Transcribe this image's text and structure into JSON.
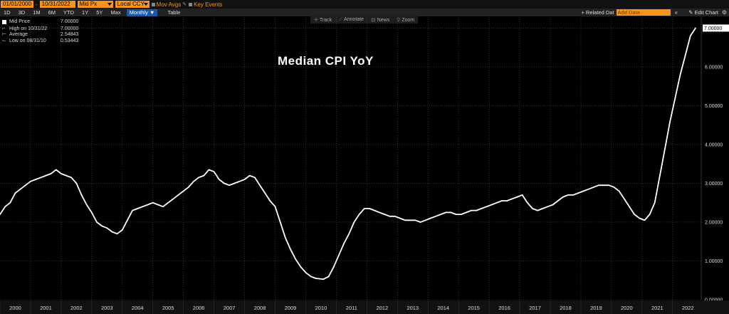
{
  "toolbar": {
    "date_start": "01/01/2000",
    "date_end": "10/31/2022",
    "price_field": "Mid Px",
    "currency_field": "Local CCY",
    "mov_avgs": "Mov Avgs",
    "key_events": "Key Events",
    "periods": [
      "1D",
      "3D",
      "1M",
      "6M",
      "YTD",
      "1Y",
      "5Y",
      "Max"
    ],
    "frequency": "Monthly",
    "table_label": "Table",
    "related_label": "+ Related Dat",
    "add_data_placeholder": "Add Data",
    "nav_arrows": "«",
    "edit_chart": "Edit Chart",
    "colors": {
      "accent": "#f7941d",
      "selected": "#1a5aa6"
    }
  },
  "chart_tools": [
    "Track",
    "Annotate",
    "News",
    "Zoom"
  ],
  "legend": [
    {
      "label": "Mid Price",
      "value": "7.00000"
    },
    {
      "label": "High on 10/31/22",
      "value": "7.00000"
    },
    {
      "label": "Average",
      "value": "2.54843"
    },
    {
      "label": "Low on 08/31/10",
      "value": "0.53443"
    }
  ],
  "chart_data": {
    "type": "line",
    "title": "Median CPI YoY",
    "xlabel": "",
    "ylabel": "",
    "x_ticks": [
      "2000",
      "2001",
      "2002",
      "2003",
      "2004",
      "2005",
      "2006",
      "2007",
      "2008",
      "2009",
      "2010",
      "2011",
      "2012",
      "2013",
      "2014",
      "2015",
      "2016",
      "2017",
      "2018",
      "2019",
      "2020",
      "2021",
      "2022"
    ],
    "y_ticks": [
      "0.00000",
      "1.00000",
      "2.00000",
      "3.00000",
      "4.00000",
      "5.00000",
      "6.00000",
      "7.00000"
    ],
    "ylim": [
      0,
      7.1
    ],
    "xlim": [
      "2000-01",
      "2022-10"
    ],
    "grid": true,
    "last_value_label": "7.00000",
    "series": [
      {
        "values": [
          [
            "2000-01",
            2.2
          ],
          [
            "2000-03",
            2.4
          ],
          [
            "2000-05",
            2.5
          ],
          [
            "2000-07",
            2.75
          ],
          [
            "2000-09",
            2.85
          ],
          [
            "2000-11",
            2.95
          ],
          [
            "2001-01",
            3.05
          ],
          [
            "2001-03",
            3.1
          ],
          [
            "2001-05",
            3.15
          ],
          [
            "2001-07",
            3.2
          ],
          [
            "2001-09",
            3.25
          ],
          [
            "2001-11",
            3.35
          ],
          [
            "2002-01",
            3.25
          ],
          [
            "2002-03",
            3.2
          ],
          [
            "2002-05",
            3.15
          ],
          [
            "2002-07",
            3.0
          ],
          [
            "2002-09",
            2.7
          ],
          [
            "2002-11",
            2.45
          ],
          [
            "2003-01",
            2.25
          ],
          [
            "2003-03",
            2.0
          ],
          [
            "2003-05",
            1.9
          ],
          [
            "2003-07",
            1.85
          ],
          [
            "2003-09",
            1.75
          ],
          [
            "2003-11",
            1.7
          ],
          [
            "2004-01",
            1.8
          ],
          [
            "2004-03",
            2.05
          ],
          [
            "2004-05",
            2.3
          ],
          [
            "2004-07",
            2.35
          ],
          [
            "2004-09",
            2.4
          ],
          [
            "2004-11",
            2.45
          ],
          [
            "2005-01",
            2.5
          ],
          [
            "2005-03",
            2.45
          ],
          [
            "2005-05",
            2.4
          ],
          [
            "2005-07",
            2.5
          ],
          [
            "2005-09",
            2.6
          ],
          [
            "2005-11",
            2.7
          ],
          [
            "2006-01",
            2.8
          ],
          [
            "2006-03",
            2.9
          ],
          [
            "2006-05",
            3.05
          ],
          [
            "2006-07",
            3.15
          ],
          [
            "2006-09",
            3.2
          ],
          [
            "2006-11",
            3.35
          ],
          [
            "2007-01",
            3.3
          ],
          [
            "2007-03",
            3.1
          ],
          [
            "2007-05",
            3.0
          ],
          [
            "2007-07",
            2.95
          ],
          [
            "2007-09",
            3.0
          ],
          [
            "2007-11",
            3.05
          ],
          [
            "2008-01",
            3.1
          ],
          [
            "2008-03",
            3.2
          ],
          [
            "2008-05",
            3.15
          ],
          [
            "2008-07",
            2.95
          ],
          [
            "2008-09",
            2.75
          ],
          [
            "2008-11",
            2.55
          ],
          [
            "2009-01",
            2.4
          ],
          [
            "2009-03",
            2.0
          ],
          [
            "2009-05",
            1.6
          ],
          [
            "2009-07",
            1.3
          ],
          [
            "2009-09",
            1.05
          ],
          [
            "2009-11",
            0.85
          ],
          [
            "2010-01",
            0.7
          ],
          [
            "2010-03",
            0.6
          ],
          [
            "2010-05",
            0.55
          ],
          [
            "2010-08",
            0.53
          ],
          [
            "2010-10",
            0.6
          ],
          [
            "2010-12",
            0.85
          ],
          [
            "2011-02",
            1.15
          ],
          [
            "2011-04",
            1.45
          ],
          [
            "2011-06",
            1.7
          ],
          [
            "2011-08",
            2.0
          ],
          [
            "2011-10",
            2.2
          ],
          [
            "2011-12",
            2.35
          ],
          [
            "2012-02",
            2.35
          ],
          [
            "2012-04",
            2.3
          ],
          [
            "2012-06",
            2.25
          ],
          [
            "2012-08",
            2.2
          ],
          [
            "2012-10",
            2.15
          ],
          [
            "2012-12",
            2.15
          ],
          [
            "2013-02",
            2.1
          ],
          [
            "2013-04",
            2.05
          ],
          [
            "2013-06",
            2.05
          ],
          [
            "2013-08",
            2.05
          ],
          [
            "2013-10",
            2.0
          ],
          [
            "2013-12",
            2.05
          ],
          [
            "2014-02",
            2.1
          ],
          [
            "2014-04",
            2.15
          ],
          [
            "2014-06",
            2.2
          ],
          [
            "2014-08",
            2.25
          ],
          [
            "2014-10",
            2.25
          ],
          [
            "2014-12",
            2.2
          ],
          [
            "2015-02",
            2.2
          ],
          [
            "2015-04",
            2.25
          ],
          [
            "2015-06",
            2.3
          ],
          [
            "2015-08",
            2.3
          ],
          [
            "2015-10",
            2.35
          ],
          [
            "2015-12",
            2.4
          ],
          [
            "2016-02",
            2.45
          ],
          [
            "2016-04",
            2.5
          ],
          [
            "2016-06",
            2.55
          ],
          [
            "2016-08",
            2.55
          ],
          [
            "2016-10",
            2.6
          ],
          [
            "2016-12",
            2.65
          ],
          [
            "2017-02",
            2.7
          ],
          [
            "2017-04",
            2.5
          ],
          [
            "2017-06",
            2.35
          ],
          [
            "2017-08",
            2.3
          ],
          [
            "2017-10",
            2.35
          ],
          [
            "2017-12",
            2.4
          ],
          [
            "2018-02",
            2.45
          ],
          [
            "2018-04",
            2.55
          ],
          [
            "2018-06",
            2.65
          ],
          [
            "2018-08",
            2.7
          ],
          [
            "2018-10",
            2.7
          ],
          [
            "2018-12",
            2.75
          ],
          [
            "2019-02",
            2.8
          ],
          [
            "2019-04",
            2.85
          ],
          [
            "2019-06",
            2.9
          ],
          [
            "2019-08",
            2.95
          ],
          [
            "2019-10",
            2.95
          ],
          [
            "2019-12",
            2.95
          ],
          [
            "2020-02",
            2.9
          ],
          [
            "2020-04",
            2.8
          ],
          [
            "2020-06",
            2.6
          ],
          [
            "2020-08",
            2.4
          ],
          [
            "2020-10",
            2.2
          ],
          [
            "2020-12",
            2.1
          ],
          [
            "2021-02",
            2.05
          ],
          [
            "2021-04",
            2.2
          ],
          [
            "2021-06",
            2.5
          ],
          [
            "2021-08",
            3.2
          ],
          [
            "2021-10",
            3.9
          ],
          [
            "2021-12",
            4.6
          ],
          [
            "2022-02",
            5.2
          ],
          [
            "2022-04",
            5.8
          ],
          [
            "2022-06",
            6.3
          ],
          [
            "2022-08",
            6.8
          ],
          [
            "2022-10",
            7.0
          ]
        ]
      }
    ]
  }
}
